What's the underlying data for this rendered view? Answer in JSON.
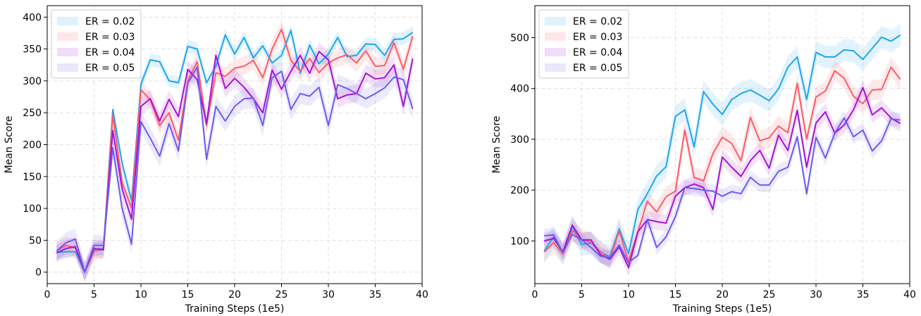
{
  "chart_data": [
    {
      "type": "line",
      "xlabel": "Training Steps (1e5)",
      "ylabel": "Mean Score",
      "xlim": [
        0,
        40
      ],
      "ylim": [
        -18,
        418
      ],
      "xticks": [
        0,
        5,
        10,
        15,
        20,
        25,
        30,
        35,
        40
      ],
      "yticks": [
        0,
        50,
        100,
        150,
        200,
        250,
        300,
        350,
        400
      ],
      "grid": true,
      "legend_position": "top-left",
      "x": [
        1,
        2,
        3,
        4,
        5,
        6,
        7,
        8,
        9,
        10,
        11,
        12,
        13,
        14,
        15,
        16,
        17,
        18,
        19,
        20,
        21,
        22,
        23,
        24,
        25,
        26,
        27,
        28,
        29,
        30,
        31,
        32,
        33,
        34,
        35,
        36,
        37,
        38,
        39
      ],
      "series": [
        {
          "name": "ER = 0.02",
          "color": "#1ea6f0",
          "band": 10,
          "values": [
            31,
            32,
            32,
            0,
            36,
            37,
            255,
            170,
            112,
            295,
            333,
            330,
            300,
            297,
            354,
            350,
            297,
            323,
            372,
            342,
            368,
            336,
            355,
            328,
            340,
            379,
            312,
            356,
            327,
            342,
            368,
            338,
            340,
            358,
            357,
            340,
            365,
            366,
            376
          ]
        },
        {
          "name": "ER = 0.03",
          "color": "#ff5a68",
          "band": 14,
          "values": [
            33,
            42,
            38,
            0,
            33,
            36,
            247,
            140,
            101,
            286,
            270,
            230,
            250,
            207,
            300,
            330,
            230,
            313,
            307,
            320,
            323,
            332,
            305,
            350,
            381,
            332,
            315,
            335,
            313,
            328,
            336,
            341,
            328,
            347,
            323,
            324,
            360,
            318,
            370
          ]
        },
        {
          "name": "ER = 0.04",
          "color": "#a314d8",
          "band": 14,
          "values": [
            30,
            37,
            40,
            0,
            37,
            35,
            222,
            130,
            83,
            260,
            272,
            237,
            271,
            244,
            318,
            302,
            233,
            340,
            288,
            304,
            290,
            272,
            250,
            317,
            287,
            315,
            340,
            312,
            346,
            333,
            272,
            278,
            280,
            312,
            303,
            305,
            325,
            260,
            335
          ]
        },
        {
          "name": "ER = 0.05",
          "color": "#6a5cf2",
          "band": 16,
          "values": [
            33,
            46,
            52,
            0,
            42,
            42,
            195,
            100,
            44,
            236,
            210,
            182,
            233,
            190,
            296,
            322,
            177,
            260,
            237,
            260,
            272,
            273,
            230,
            305,
            315,
            255,
            280,
            276,
            290,
            230,
            294,
            288,
            280,
            272,
            280,
            289,
            306,
            302,
            256
          ]
        }
      ]
    },
    {
      "type": "line",
      "xlabel": "Training Steps (1e5)",
      "ylabel": "Mean Score",
      "xlim": [
        0,
        40
      ],
      "ylim": [
        16,
        563
      ],
      "xticks": [
        0,
        5,
        10,
        15,
        20,
        25,
        30,
        35,
        40
      ],
      "yticks": [
        100,
        200,
        300,
        400,
        500
      ],
      "grid": true,
      "legend_position": "top-left",
      "x": [
        1,
        2,
        3,
        4,
        5,
        6,
        7,
        8,
        9,
        10,
        11,
        12,
        13,
        14,
        15,
        16,
        17,
        18,
        19,
        20,
        21,
        22,
        23,
        24,
        25,
        26,
        27,
        28,
        29,
        30,
        31,
        32,
        33,
        34,
        35,
        36,
        37,
        38,
        39
      ],
      "series": [
        {
          "name": "ER = 0.02",
          "color": "#1ea6f0",
          "band": 22,
          "values": [
            80,
            108,
            75,
            128,
            93,
            96,
            78,
            69,
            124,
            75,
            162,
            193,
            228,
            246,
            345,
            358,
            285,
            394,
            369,
            349,
            378,
            390,
            397,
            387,
            376,
            399,
            442,
            462,
            378,
            471,
            462,
            462,
            476,
            474,
            457,
            479,
            501,
            493,
            505
          ]
        },
        {
          "name": "ER = 0.03",
          "color": "#ff5a68",
          "band": 20,
          "values": [
            78,
            97,
            74,
            120,
            103,
            97,
            79,
            64,
            119,
            60,
            118,
            178,
            157,
            187,
            198,
            318,
            225,
            218,
            272,
            304,
            292,
            258,
            343,
            297,
            303,
            326,
            313,
            410,
            300,
            383,
            395,
            435,
            420,
            385,
            370,
            397,
            398,
            442,
            418
          ]
        },
        {
          "name": "ER = 0.04",
          "color": "#a314d8",
          "band": 16,
          "values": [
            100,
            105,
            79,
            131,
            102,
            102,
            73,
            64,
            88,
            48,
            118,
            142,
            138,
            135,
            188,
            205,
            212,
            205,
            162,
            265,
            245,
            227,
            258,
            278,
            243,
            308,
            278,
            357,
            245,
            332,
            354,
            312,
            328,
            358,
            402,
            348,
            362,
            342,
            331
          ]
        },
        {
          "name": "ER = 0.05",
          "color": "#6a5cf2",
          "band": 14,
          "values": [
            110,
            112,
            77,
            113,
            102,
            87,
            70,
            67,
            92,
            57,
            72,
            142,
            87,
            108,
            148,
            205,
            203,
            200,
            198,
            188,
            197,
            193,
            225,
            210,
            210,
            237,
            245,
            305,
            193,
            304,
            263,
            312,
            342,
            305,
            318,
            277,
            297,
            340,
            338
          ]
        }
      ]
    }
  ]
}
